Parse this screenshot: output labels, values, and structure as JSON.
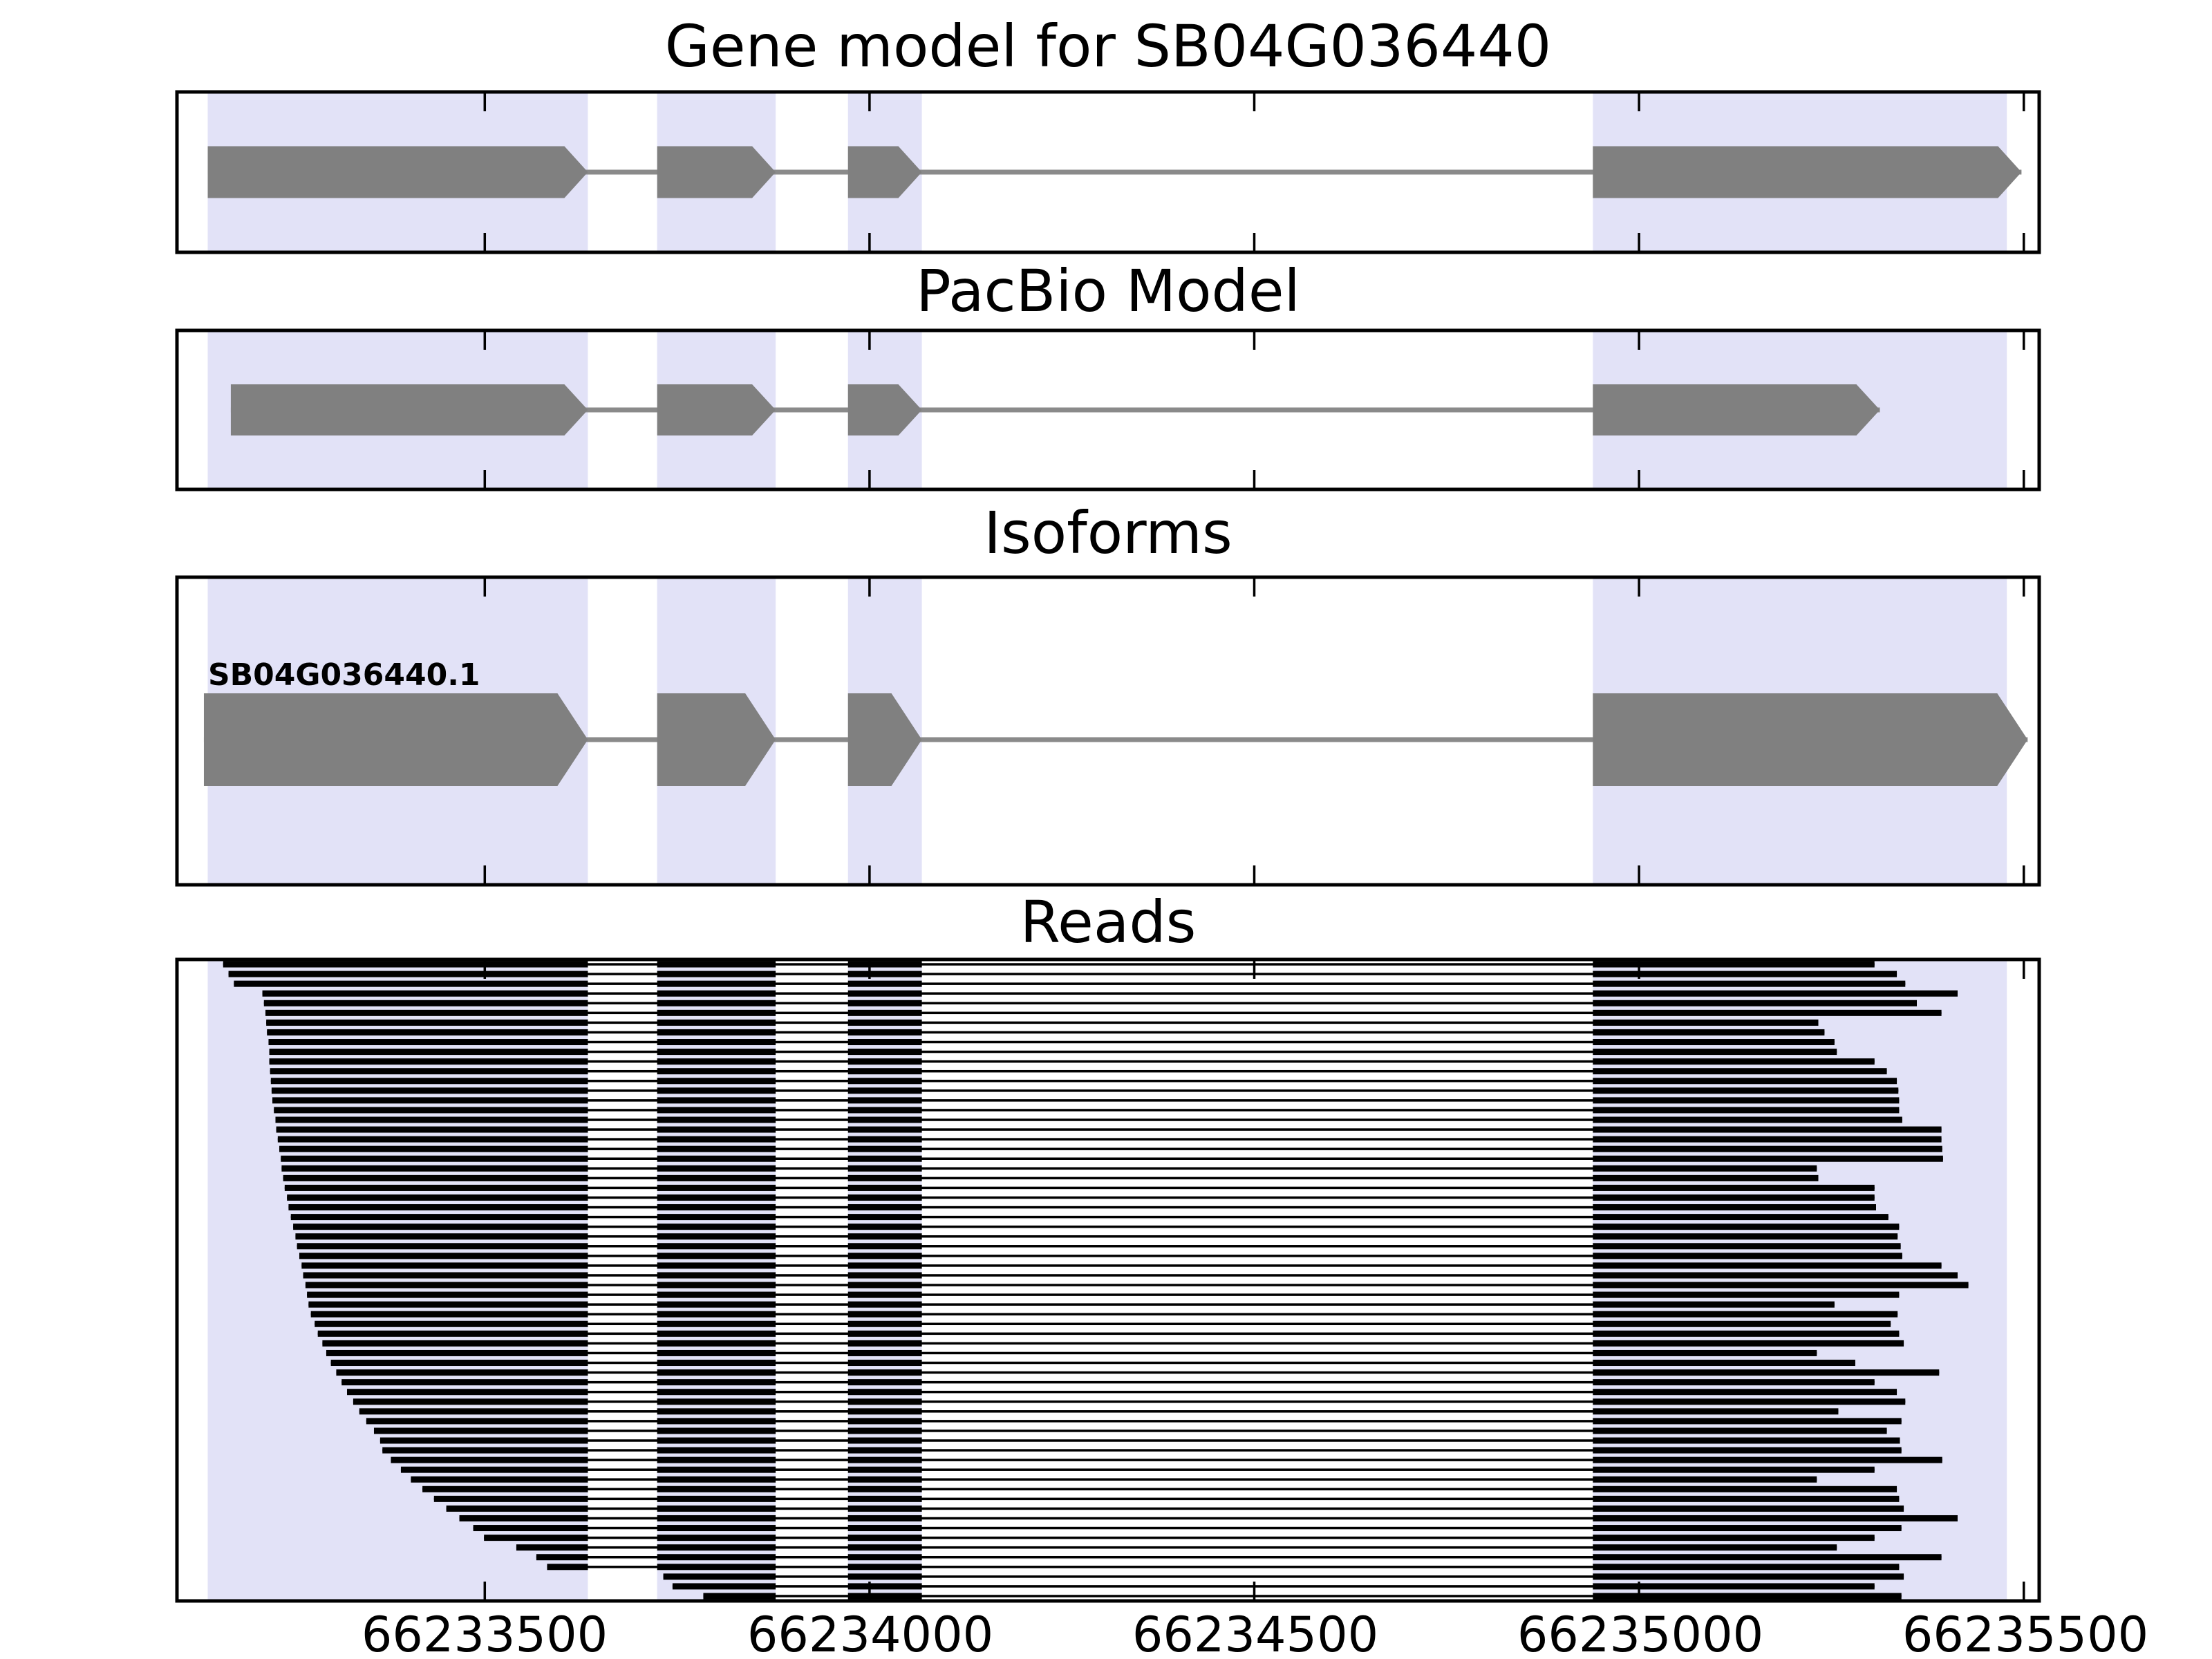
{
  "chart_data": {
    "type": "genome-tracks",
    "title": "Gene model for SB04G036440",
    "x_axis": {
      "xlim": [
        66233100,
        66235520
      ],
      "ticks": [
        66233500,
        66234000,
        66234500,
        66235000,
        66235500
      ],
      "tick_labels": [
        "66233500",
        "66234000",
        "66234500",
        "66235000",
        "66235500"
      ],
      "grid": false
    },
    "highlight_regions": [
      [
        66233140,
        66233634
      ],
      [
        66233724,
        66233878
      ],
      [
        66233972,
        66234068
      ],
      [
        66234940,
        66235478
      ]
    ],
    "tracks": [
      {
        "id": "gene-model",
        "title": "Gene model for SB04G036440",
        "type": "model",
        "models": [
          {
            "label": "",
            "strand": "+",
            "exons": [
              [
                66233140,
                66233634
              ],
              [
                66233724,
                66233878
              ],
              [
                66233972,
                66234068
              ],
              [
                66234940,
                66235497
              ]
            ]
          }
        ]
      },
      {
        "id": "pacbio-model",
        "title": "PacBio Model",
        "type": "model",
        "models": [
          {
            "label": "",
            "strand": "+",
            "exons": [
              [
                66233170,
                66233634
              ],
              [
                66233724,
                66233878
              ],
              [
                66233972,
                66234068
              ],
              [
                66234940,
                66235313
              ]
            ]
          }
        ]
      },
      {
        "id": "isoforms",
        "title": "Isoforms",
        "type": "model",
        "models": [
          {
            "label": "SB04G036440.1",
            "strand": "+",
            "exons": [
              [
                66233135,
                66233634
              ],
              [
                66233724,
                66233878
              ],
              [
                66233972,
                66234068
              ],
              [
                66234940,
                66235505
              ]
            ]
          }
        ]
      },
      {
        "id": "reads",
        "title": "Reads",
        "type": "reads",
        "exon_union": [
          [
            66233100,
            66233634
          ],
          [
            66233724,
            66233878
          ],
          [
            66233972,
            66234068
          ],
          [
            66234940,
            66235520
          ]
        ],
        "reads": [
          [
            66233160,
            66235306
          ],
          [
            66233167,
            66235335
          ],
          [
            66233174,
            66235346
          ],
          [
            66233211,
            66235414
          ],
          [
            66233213,
            66235361
          ],
          [
            66233215,
            66235393
          ],
          [
            66233216,
            66235233
          ],
          [
            66233217,
            66235241
          ],
          [
            66233219,
            66235254
          ],
          [
            66233220,
            66235257
          ],
          [
            66233220,
            66235306
          ],
          [
            66233221,
            66235322
          ],
          [
            66233222,
            66235335
          ],
          [
            66233223,
            66235337
          ],
          [
            66233224,
            66235338
          ],
          [
            66233226,
            66235338
          ],
          [
            66233228,
            66235342
          ],
          [
            66233229,
            66235393
          ],
          [
            66233231,
            66235393
          ],
          [
            66233233,
            66235394
          ],
          [
            66233235,
            66235395
          ],
          [
            66233236,
            66235231
          ],
          [
            66233238,
            66235233
          ],
          [
            66233240,
            66235306
          ],
          [
            66233243,
            66235306
          ],
          [
            66233245,
            66235308
          ],
          [
            66233248,
            66235324
          ],
          [
            66233251,
            66235338
          ],
          [
            66233254,
            66235336
          ],
          [
            66233256,
            66235340
          ],
          [
            66233259,
            66235342
          ],
          [
            66233262,
            66235393
          ],
          [
            66233264,
            66235414
          ],
          [
            66233267,
            66235428
          ],
          [
            66233269,
            66235338
          ],
          [
            66233271,
            66235254
          ],
          [
            66233274,
            66235336
          ],
          [
            66233279,
            66235327
          ],
          [
            66233283,
            66235338
          ],
          [
            66233289,
            66235344
          ],
          [
            66233294,
            66235231
          ],
          [
            66233300,
            66235281
          ],
          [
            66233307,
            66235390
          ],
          [
            66233314,
            66235306
          ],
          [
            66233321,
            66235335
          ],
          [
            66233329,
            66235346
          ],
          [
            66233337,
            66235259
          ],
          [
            66233346,
            66235341
          ],
          [
            66233356,
            66235322
          ],
          [
            66233364,
            66235339
          ],
          [
            66233367,
            66235341
          ],
          [
            66233378,
            66235394
          ],
          [
            66233391,
            66235306
          ],
          [
            66233404,
            66235231
          ],
          [
            66233419,
            66235335
          ],
          [
            66233434,
            66235338
          ],
          [
            66233450,
            66235344
          ],
          [
            66233467,
            66235414
          ],
          [
            66233485,
            66235341
          ],
          [
            66233499,
            66235306
          ],
          [
            66233541,
            66235257
          ],
          [
            66233567,
            66235393
          ],
          [
            66233581,
            66235338
          ],
          [
            66233732,
            66235344
          ],
          [
            66233744,
            66235306
          ],
          [
            66233784,
            66235341
          ]
        ]
      }
    ],
    "colors": {
      "exon": "#808080",
      "intron_line": "#8a8a8a",
      "highlight_band": "#e2e2f7",
      "read": "#000000",
      "panel_border": "#000000",
      "text": "#000000",
      "background": "#ffffff"
    }
  }
}
